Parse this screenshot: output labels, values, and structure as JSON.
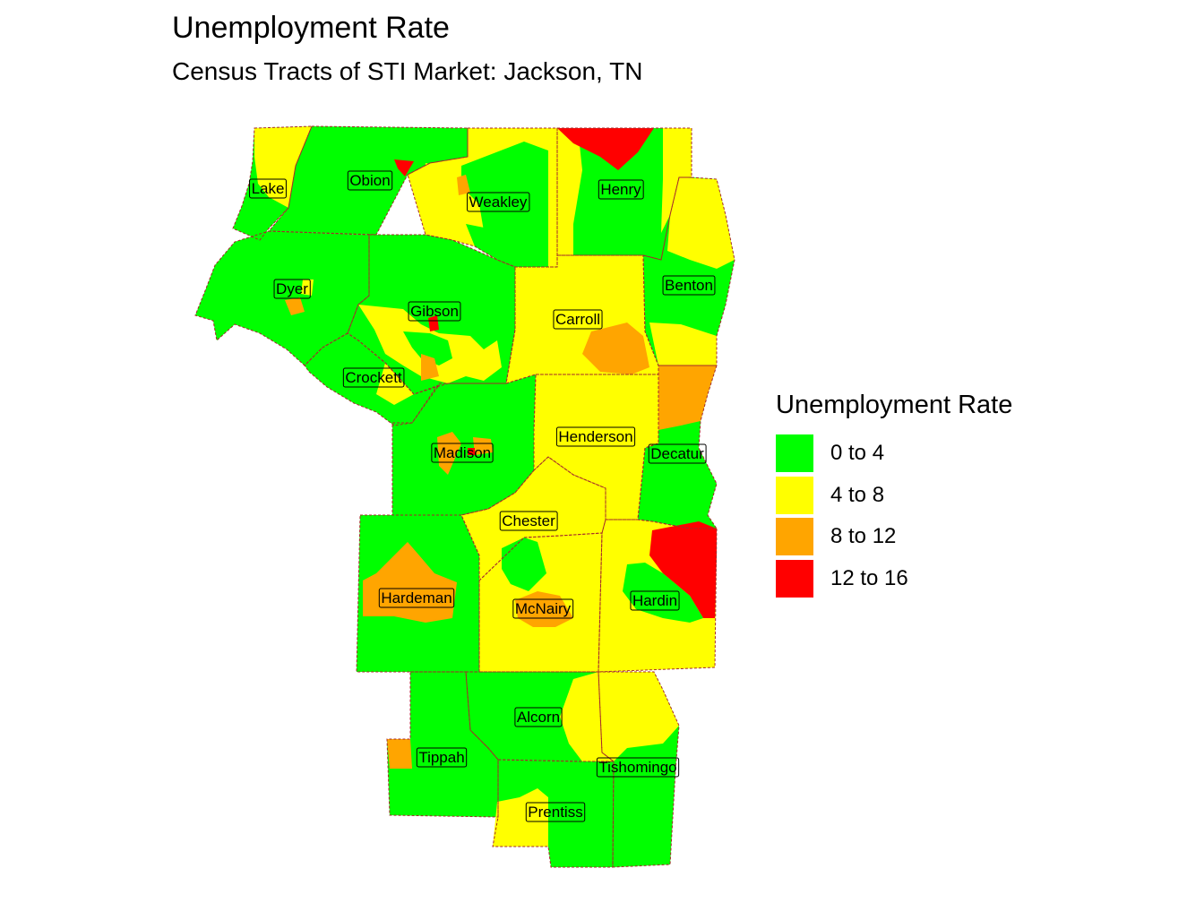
{
  "title": "Unemployment Rate",
  "subtitle": "Census Tracts of STI Market: Jackson, TN",
  "colors": {
    "0 to 4": "#00ff00",
    "4 to 8": "#ffff00",
    "8 to 12": "#ffa500",
    "12 to 16": "#ff0000",
    "border": "#a52a2a"
  },
  "legend": {
    "title": "Unemployment Rate",
    "items": [
      {
        "label": "0 to 4",
        "color": "#00ff00"
      },
      {
        "label": "4 to 8",
        "color": "#ffff00"
      },
      {
        "label": "8 to 12",
        "color": "#ffa500"
      },
      {
        "label": "12 to 16",
        "color": "#ff0000"
      }
    ]
  },
  "counties": [
    {
      "name": "Lake",
      "dominant_class": "0 to 4"
    },
    {
      "name": "Obion",
      "dominant_class": "0 to 4"
    },
    {
      "name": "Weakley",
      "dominant_class": "4 to 8"
    },
    {
      "name": "Henry",
      "dominant_class": "0 to 4"
    },
    {
      "name": "Dyer",
      "dominant_class": "0 to 4"
    },
    {
      "name": "Benton",
      "dominant_class": "0 to 4"
    },
    {
      "name": "Gibson",
      "dominant_class": "0 to 4"
    },
    {
      "name": "Carroll",
      "dominant_class": "4 to 8"
    },
    {
      "name": "Crockett",
      "dominant_class": "0 to 4"
    },
    {
      "name": "Henderson",
      "dominant_class": "4 to 8"
    },
    {
      "name": "Madison",
      "dominant_class": "0 to 4"
    },
    {
      "name": "Decatur",
      "dominant_class": "0 to 4"
    },
    {
      "name": "Chester",
      "dominant_class": "4 to 8"
    },
    {
      "name": "Hardeman",
      "dominant_class": "0 to 4"
    },
    {
      "name": "McNairy",
      "dominant_class": "4 to 8"
    },
    {
      "name": "Hardin",
      "dominant_class": "4 to 8"
    },
    {
      "name": "Alcorn",
      "dominant_class": "0 to 4"
    },
    {
      "name": "Tippah",
      "dominant_class": "0 to 4"
    },
    {
      "name": "Tishomingo",
      "dominant_class": "0 to 4"
    },
    {
      "name": "Prentiss",
      "dominant_class": "0 to 4"
    }
  ]
}
